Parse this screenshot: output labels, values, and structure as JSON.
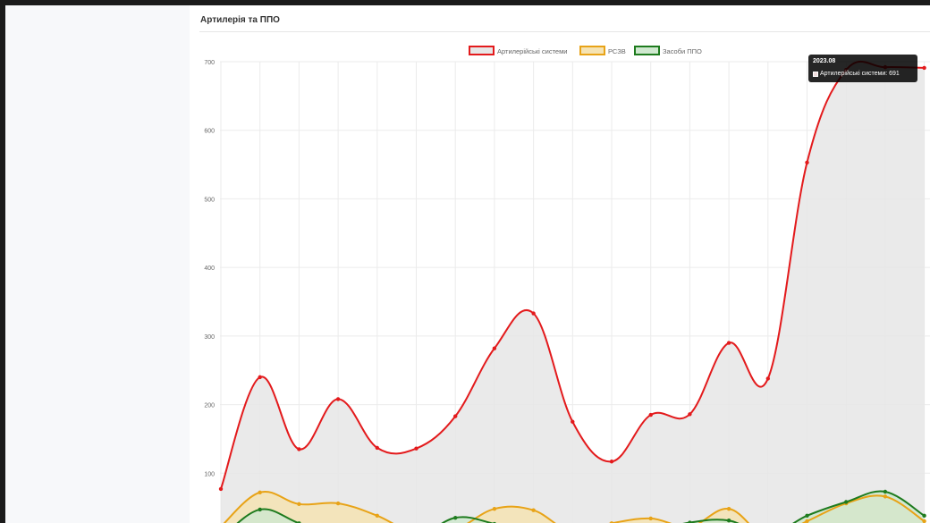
{
  "panel": {
    "title": "Артилерія та ППО"
  },
  "tooltip": {
    "title": "2023.08",
    "body": "Артилерійські системи: 691"
  },
  "chart_data": {
    "type": "line",
    "title": "",
    "xlabel": "",
    "ylabel": "",
    "ylim": [
      0,
      700
    ],
    "yticks": [
      100,
      200,
      300,
      400,
      500,
      600,
      700
    ],
    "grid": true,
    "legend_position": "top",
    "x": [
      1,
      2,
      3,
      4,
      5,
      6,
      7,
      8,
      9,
      10,
      11,
      12,
      13,
      14,
      15,
      16,
      17,
      18,
      19
    ],
    "series": [
      {
        "name": "Артилерійські системи",
        "color": "#e31a1c",
        "fill": "#e6e6e6",
        "values": [
          77,
          240,
          135,
          208,
          137,
          136,
          183,
          282,
          333,
          175,
          117,
          185,
          186,
          290,
          238,
          553,
          688,
          692,
          691
        ]
      },
      {
        "name": "РСЗВ",
        "color": "#e8a317",
        "fill": "#f5e3b3",
        "values": [
          22,
          72,
          55,
          56,
          38,
          12,
          18,
          48,
          46,
          14,
          27,
          34,
          22,
          48,
          6,
          30,
          56,
          66,
          30
        ]
      },
      {
        "name": "Засоби ППО",
        "color": "#1e7b1e",
        "fill": "#cfe8cf",
        "values": [
          5,
          47,
          27,
          8,
          4,
          5,
          35,
          26,
          8,
          3,
          10,
          15,
          28,
          31,
          10,
          38,
          58,
          73,
          38
        ]
      }
    ]
  }
}
